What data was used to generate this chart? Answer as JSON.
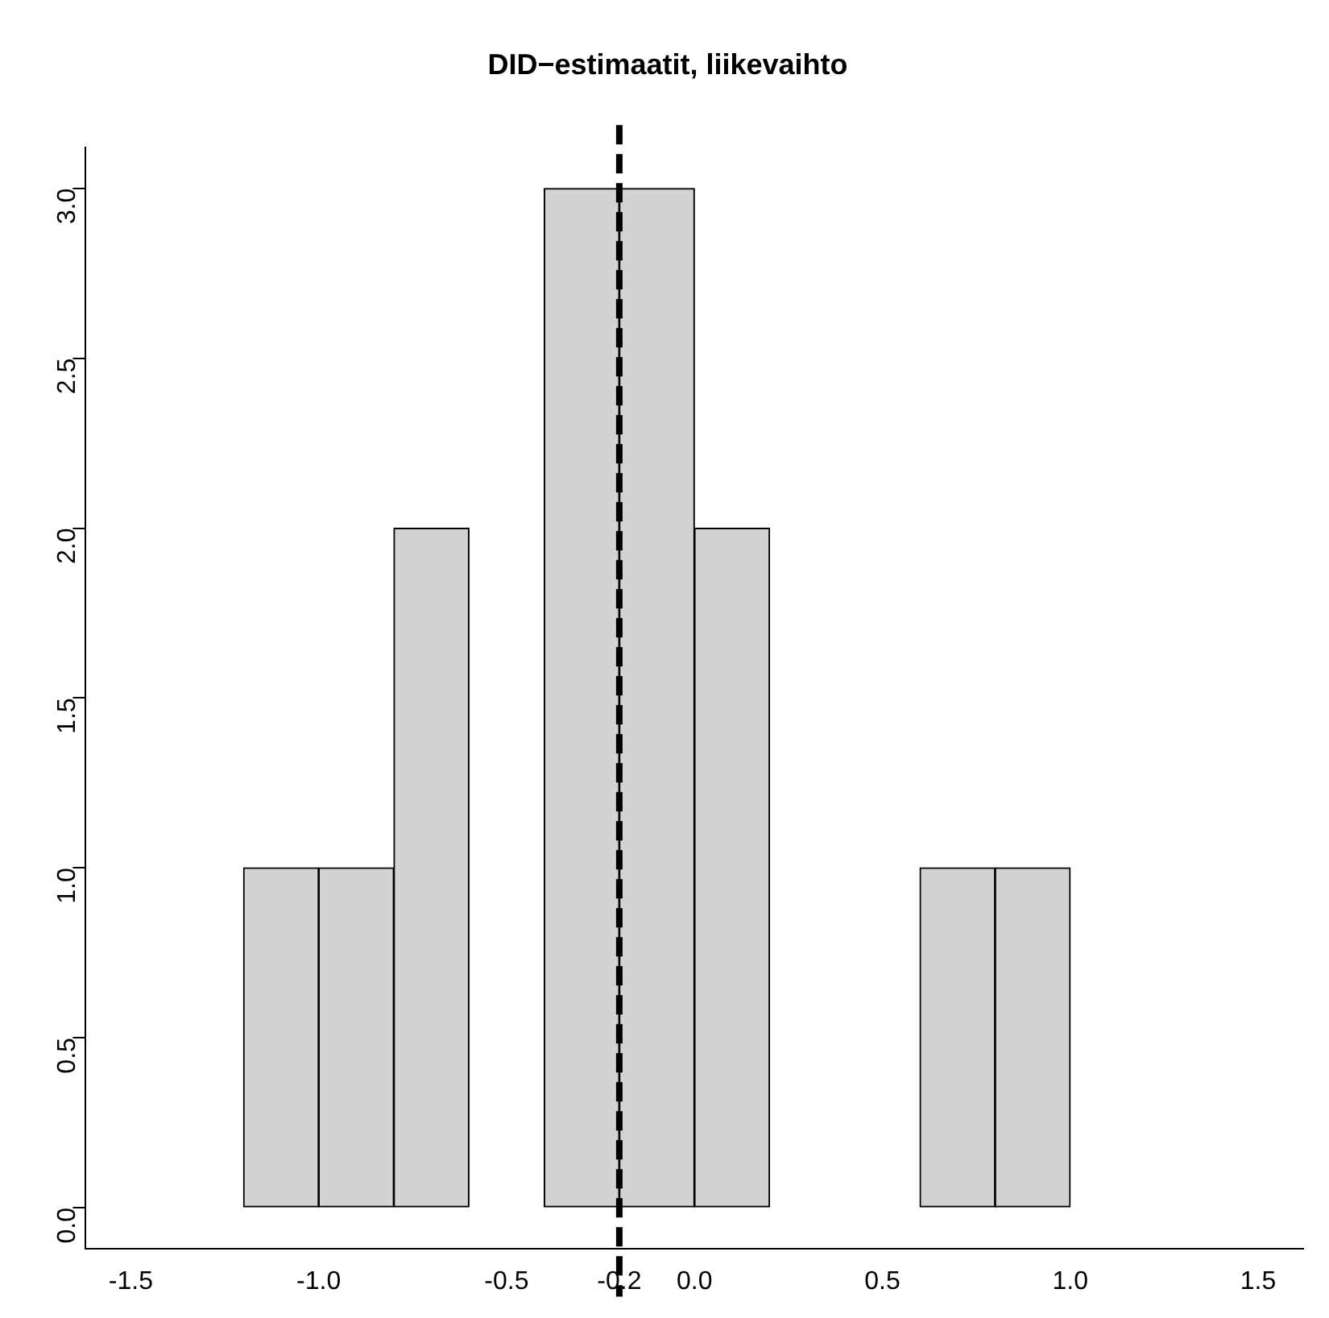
{
  "chart_data": {
    "type": "histogram",
    "title": "DID−estimaatit, liikevaihto",
    "bins": [
      -1.2,
      -1.0,
      -0.8,
      -0.6,
      -0.4,
      -0.2,
      0.0,
      0.2,
      0.4,
      0.6,
      0.8,
      1.0
    ],
    "values": [
      1,
      1,
      2,
      0,
      3,
      3,
      2,
      0,
      0,
      1,
      1
    ],
    "color": "#d3d3d3",
    "xlim": [
      -1.62,
      1.62
    ],
    "xticks": [
      {
        "value": -1.5,
        "label": "-1.5"
      },
      {
        "value": -1.0,
        "label": "-1.0"
      },
      {
        "value": -0.5,
        "label": "-0.5"
      },
      {
        "value": -0.2,
        "label": "-0.2"
      },
      {
        "value": 0,
        "label": "0.0"
      },
      {
        "value": 0.5,
        "label": "0.5"
      },
      {
        "value": 1.0,
        "label": "1.0"
      },
      {
        "value": 1.5,
        "label": "1.5"
      }
    ],
    "ylim": [
      -0.12,
      3.12
    ],
    "yticks": [
      {
        "value": 0,
        "label": "0.0"
      },
      {
        "value": 0.5,
        "label": "0.5"
      },
      {
        "value": 1,
        "label": "1.0"
      },
      {
        "value": 1.5,
        "label": "1.5"
      },
      {
        "value": 2,
        "label": "2.0"
      },
      {
        "value": 2.5,
        "label": "2.5"
      },
      {
        "value": 3,
        "label": "3.0"
      }
    ],
    "ref_lines": [
      {
        "axis": "x",
        "value": -0.2,
        "color": "#000000",
        "line_style": "dashed"
      }
    ],
    "grid": false,
    "legend": false
  }
}
